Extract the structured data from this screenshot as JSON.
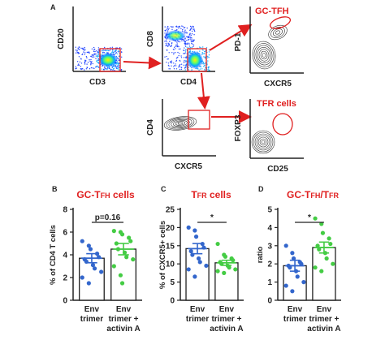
{
  "panel_letters": {
    "a": "A",
    "b": "B",
    "c": "C",
    "d": "D"
  },
  "flow": {
    "p1": {
      "x": "CD3",
      "y": "CD20"
    },
    "p2": {
      "x": "CD4",
      "y": "CD8"
    },
    "p3": {
      "x": "CXCR5",
      "y": "PD-1",
      "gate": "GC-TFH"
    },
    "p4": {
      "x": "CXCR5",
      "y": "CD4"
    },
    "p5": {
      "x": "CD25",
      "y": "FOXP3",
      "gate": "TFR cells"
    },
    "colors": {
      "arrow": "#e02020",
      "gate": "#e02020"
    }
  },
  "chart_data": [
    {
      "type": "bar",
      "panel": "B",
      "title": {
        "main": "GC-T",
        "sub": "FH",
        "tail": " cells"
      },
      "ylabel": "% of CD4  T cells",
      "ylim": [
        0,
        8
      ],
      "yticks": [
        "0",
        "2",
        "4",
        "6",
        "8"
      ],
      "categories": [
        [
          "Env",
          "trimer"
        ],
        [
          "Env",
          "trimer +",
          "activin A"
        ]
      ],
      "values": [
        3.7,
        4.5
      ],
      "sem": [
        0.4,
        0.5
      ],
      "points": [
        [
          5.2,
          4.8,
          4.5,
          4.1,
          3.8,
          3.6,
          3.4,
          3.1,
          2.8,
          2.5,
          2.0,
          1.5
        ],
        [
          6.1,
          6.0,
          5.8,
          5.5,
          5.2,
          5.0,
          4.5,
          4.2,
          3.8,
          3.6,
          3.0,
          2.2,
          1.5
        ]
      ],
      "point_colors": [
        "#3366cc",
        "#44cc44"
      ],
      "annotation": "p=0.16"
    },
    {
      "type": "bar",
      "panel": "C",
      "title": {
        "main": "T",
        "sub": "FR",
        "tail": " cells"
      },
      "ylabel": "% of CXCR5+ cells",
      "ylim": [
        0,
        25
      ],
      "yticks": [
        "0",
        "5",
        "10",
        "15",
        "20",
        "25"
      ],
      "categories": [
        [
          "Env",
          "trimer"
        ],
        [
          "Env",
          "trimer +",
          "activin A"
        ]
      ],
      "values": [
        14.2,
        10.3
      ],
      "sem": [
        1.4,
        0.7
      ],
      "points": [
        [
          20.0,
          19.2,
          17.5,
          15.5,
          14.5,
          13.5,
          12.5,
          11.5,
          10.5,
          9.5,
          8.5,
          6.5
        ],
        [
          15.5,
          12.5,
          12.0,
          11.5,
          11.0,
          10.5,
          10.0,
          9.5,
          9.0,
          8.5,
          8.0,
          7.5
        ]
      ],
      "point_colors": [
        "#3366cc",
        "#44cc44"
      ],
      "annotation": "*"
    },
    {
      "type": "bar",
      "panel": "D",
      "title": {
        "main": "GC-T",
        "sub": "FH",
        "mid": "/T",
        "sub2": "FR",
        "tail": ""
      },
      "ylabel": "ratio",
      "ylim": [
        0,
        5
      ],
      "yticks": [
        "0",
        "1",
        "2",
        "3",
        "4",
        "5"
      ],
      "categories": [
        [
          "Env",
          "trimer"
        ],
        [
          "Env",
          "trimer +",
          "activin A"
        ]
      ],
      "values": [
        1.9,
        2.9
      ],
      "sem": [
        0.3,
        0.3
      ],
      "points": [
        [
          3.0,
          2.6,
          2.3,
          2.1,
          2.0,
          1.9,
          1.8,
          1.6,
          1.3,
          1.0,
          0.8,
          0.5
        ],
        [
          4.5,
          4.2,
          3.7,
          3.4,
          3.1,
          3.0,
          2.8,
          2.6,
          2.3,
          2.0,
          1.8,
          1.6
        ]
      ],
      "point_colors": [
        "#3366cc",
        "#44cc44"
      ],
      "annotation": "*"
    }
  ]
}
